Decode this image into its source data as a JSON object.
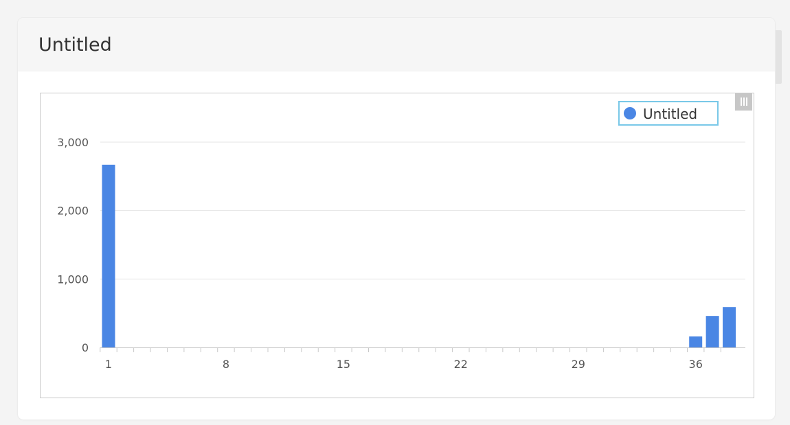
{
  "panel": {
    "title": "Untitled"
  },
  "legend": {
    "label": "Untitled",
    "color": "#4a86e4"
  },
  "chart_data": {
    "type": "bar",
    "title": "",
    "xlabel": "",
    "ylabel": "",
    "ylim": [
      0,
      3000
    ],
    "y_ticks": [
      0,
      1000,
      2000,
      3000
    ],
    "y_tick_labels": [
      "0",
      "1,000",
      "2,000",
      "3,000"
    ],
    "x_tick_labels": [
      "1",
      "8",
      "15",
      "22",
      "29",
      "36"
    ],
    "x_range": [
      1,
      38
    ],
    "grid": true,
    "legend_position": "top-right",
    "series": [
      {
        "name": "Untitled",
        "color": "#4a86e4",
        "x": [
          1,
          36,
          37,
          38
        ],
        "values": [
          2670,
          160,
          460,
          590
        ]
      }
    ]
  }
}
